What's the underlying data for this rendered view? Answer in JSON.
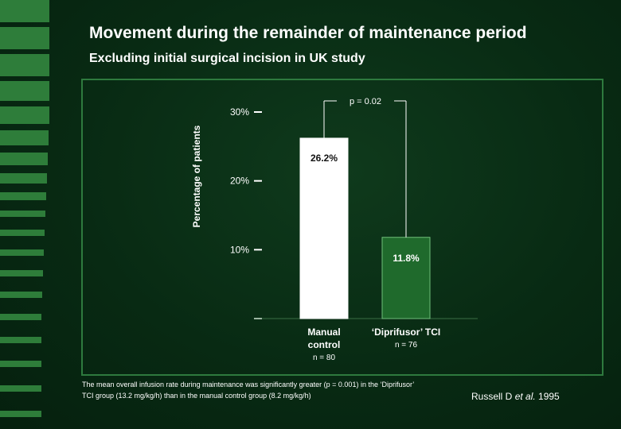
{
  "slide": {
    "title": "Movement during the remainder of maintenance period",
    "subtitle": "Excluding initial surgical incision in UK study",
    "footnote": "The mean overall infusion rate during maintenance was significantly greater (p = 0.001) in the ‘Diprifusor’ TCI group (13.2 mg/kg/h) than in the manual control group (8.2 mg/kg/h)",
    "citation_author": "Russell D ",
    "citation_etal": "et al.",
    "citation_year": " 1995"
  },
  "colors": {
    "background": "#082a13",
    "frame": "#2e7a3e",
    "bar_manual": "#ffffff",
    "bar_diprifusor": "#1f6a2c",
    "stripe": "#2e7d3a",
    "axis": "#ffffff"
  },
  "chart_data": {
    "type": "bar",
    "ylabel": "Percentage of patients",
    "ylim": [
      0,
      30
    ],
    "yticks": [
      {
        "value": 10,
        "label": "10%"
      },
      {
        "value": 20,
        "label": "20%"
      },
      {
        "value": 30,
        "label": "30%"
      }
    ],
    "categories": [
      {
        "name": "Manual control",
        "line1": "Manual",
        "line2": "control",
        "n_label": "n = 80"
      },
      {
        "name": "‘Diprifusor’ TCI",
        "line1": "‘Diprifusor’ TCI",
        "line2": "",
        "n_label": "n = 76"
      }
    ],
    "values": [
      26.2,
      11.8
    ],
    "value_labels": [
      "26.2%",
      "11.8%"
    ],
    "significance": {
      "label": "p = 0.02"
    }
  }
}
